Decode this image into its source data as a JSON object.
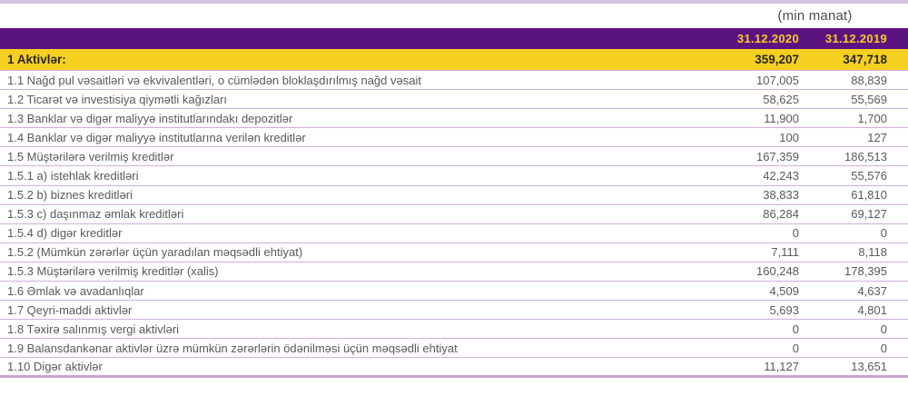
{
  "unit_note": "(min manat)",
  "colors": {
    "purple": "#5c1382",
    "yellow": "#f5d020",
    "line": "#cfb0da",
    "line_light": "#d6c0de",
    "line_strong": "#c9a4d2"
  },
  "table": {
    "columns": {
      "c2020": "31.12.2020",
      "c2019": "31.12.2019"
    },
    "total_row": {
      "label": "1 Aktivlər:",
      "v2020": "359,207",
      "v2019": "347,718"
    },
    "rows": [
      {
        "label": "1.1 Nağd pul vəsaitləri və ekvivalentləri, o cümlədən bloklaşdırılmış nağd vəsait",
        "v2020": "107,005",
        "v2019": "88,839"
      },
      {
        "label": "1.2 Ticarət və investisiya qiymətli kağızları",
        "v2020": "58,625",
        "v2019": "55,569"
      },
      {
        "label": "1.3 Banklar və digər maliyyə institutlarındakı depozitlər",
        "v2020": "11,900",
        "v2019": "1,700"
      },
      {
        "label": "1.4 Banklar və digər maliyyə institutlarına verilən kreditlər",
        "v2020": "100",
        "v2019": "127"
      },
      {
        "label": "1.5 Müştərilərə verilmiş kreditlər",
        "v2020": "167,359",
        "v2019": "186,513"
      },
      {
        "label": "1.5.1 a) istehlak kreditləri",
        "v2020": "42,243",
        "v2019": "55,576"
      },
      {
        "label": "1.5.2 b) biznes kreditləri",
        "v2020": "38,833",
        "v2019": "61,810"
      },
      {
        "label": "1.5.3 c) daşınmaz əmlak kreditləri",
        "v2020": "86,284",
        "v2019": "69,127"
      },
      {
        "label": "1.5.4 d) digər kreditlər",
        "v2020": "0",
        "v2019": "0"
      },
      {
        "label": "1.5.2 (Mümkün zərərlər üçün yaradılan məqsədli ehtiyat)",
        "v2020": "7,111",
        "v2019": "8,118"
      },
      {
        "label": "1.5.3 Müştərilərə verilmiş kreditlər (xalis)",
        "v2020": "160,248",
        "v2019": "178,395"
      },
      {
        "label": "1.6 Əmlak və avadanlıqlar",
        "v2020": "4,509",
        "v2019": "4,637"
      },
      {
        "label": "1.7 Qeyri-maddi aktivlər",
        "v2020": "5,693",
        "v2019": "4,801"
      },
      {
        "label": "1.8 Təxirə salınmış vergi aktivləri",
        "v2020": "0",
        "v2019": "0"
      },
      {
        "label": "1.9 Balansdankənar aktivlər üzrə mümkün zərərlərin ödənilməsi üçün məqsədli ehtiyat",
        "v2020": "0",
        "v2019": "0"
      },
      {
        "label": "1.10 Digər aktivlər",
        "v2020": "11,127",
        "v2019": "13,651"
      }
    ]
  }
}
